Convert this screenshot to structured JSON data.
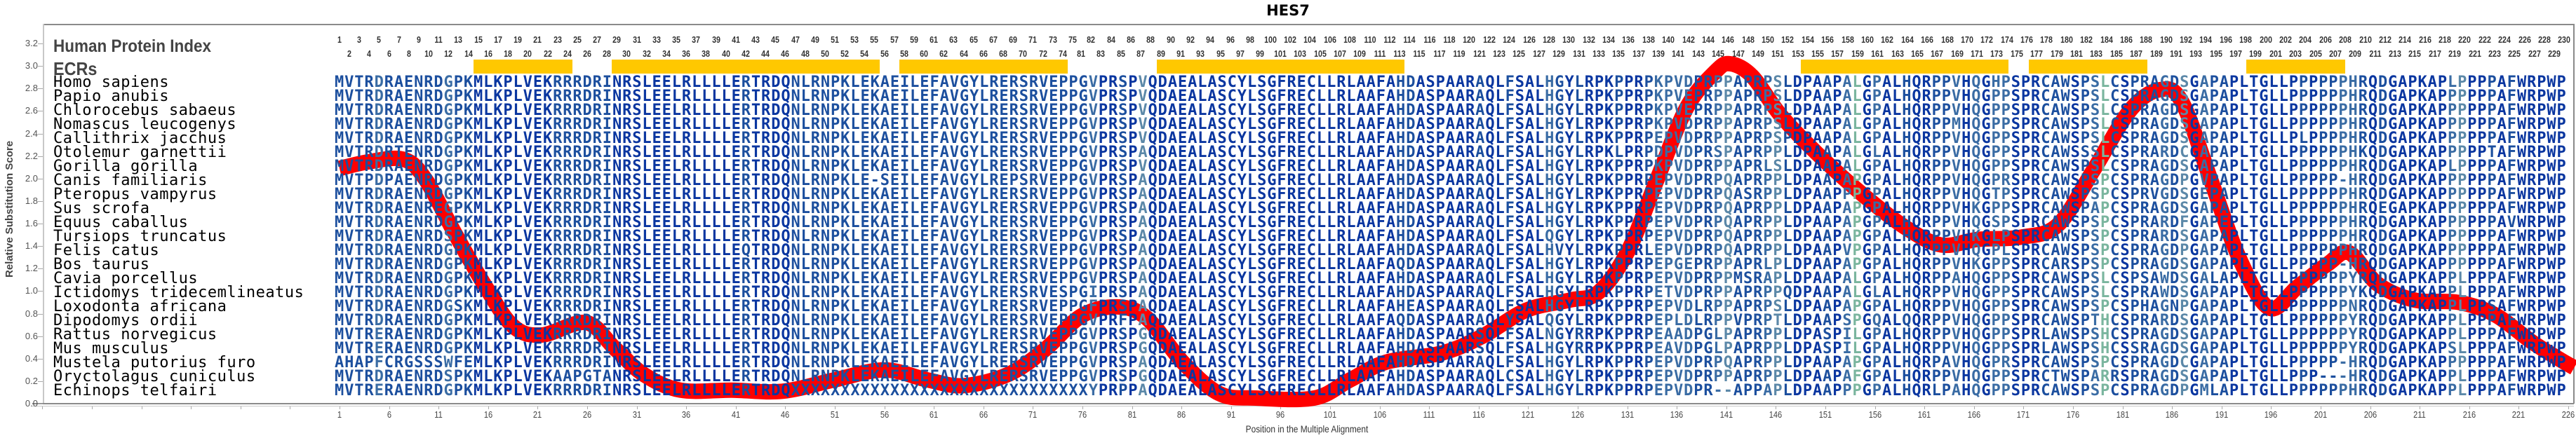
{
  "title": "HES7",
  "labels": {
    "human_protein_index": "Human Protein Index",
    "ecrs": "ECRs"
  },
  "chart_data": {
    "type": "line",
    "title": "HES7",
    "xlabel": "Position in the Multiple Alignment",
    "ylabel": "Relative Substitution Score",
    "xlim": [
      1,
      226
    ],
    "ylim": [
      0,
      3.2
    ],
    "grid": false,
    "x_ticks": [
      1,
      6,
      11,
      16,
      21,
      26,
      31,
      36,
      41,
      46,
      51,
      56,
      61,
      66,
      71,
      76,
      81,
      86,
      91,
      96,
      101,
      106,
      111,
      116,
      121,
      126,
      131,
      136,
      141,
      146,
      151,
      156,
      161,
      166,
      171,
      176,
      181,
      186,
      191,
      196,
      201,
      206,
      211,
      216,
      221,
      226
    ],
    "y_ticks": [
      "0.0",
      "0.2",
      "0.4",
      "0.6",
      "0.8",
      "1.0",
      "1.2",
      "1.4",
      "1.6",
      "1.8",
      "2.0",
      "2.2",
      "2.4",
      "2.6",
      "2.8",
      "3.0",
      "3.2"
    ],
    "series": [
      {
        "color": "#ff0000",
        "x": [
          1,
          4,
          7.5,
          9.7,
          12.6,
          15.6,
          18.5,
          21.4,
          25.9,
          28.8,
          31.7,
          35.4,
          40.6,
          45.7,
          50.9,
          56,
          60.4,
          64,
          68.5,
          72.2,
          75.9,
          79.5,
          82.5,
          86.1,
          89.8,
          93.5,
          99.4,
          103,
          106.7,
          112.3,
          116.4,
          120.8,
          125.2,
          128.1,
          131.1,
          134,
          137,
          139.9,
          141.4,
          143.6,
          146.5,
          150.2,
          154.6,
          159,
          162.7,
          166.4,
          170.8,
          174.5,
          178.1,
          181.8,
          184.8,
          187,
          189.9,
          192.8,
          195.8,
          198.7,
          201.7,
          203.9,
          206.8,
          210.5,
          214.9,
          218.6,
          222.3,
          225.2,
          226.6
        ],
        "y": [
          2.09,
          2.15,
          2.17,
          1.99,
          1.52,
          1.06,
          0.69,
          0.61,
          0.72,
          0.49,
          0.26,
          0.12,
          0.12,
          0.11,
          0.21,
          0.3,
          0.21,
          0.16,
          0.26,
          0.48,
          0.78,
          0.86,
          0.76,
          0.37,
          0.09,
          0.05,
          0.05,
          0.21,
          0.37,
          0.45,
          0.6,
          0.83,
          0.92,
          0.99,
          1.36,
          1.99,
          2.63,
          2.95,
          3.02,
          2.91,
          2.56,
          2.22,
          1.87,
          1.57,
          1.41,
          1.46,
          1.48,
          1.59,
          2.08,
          2.61,
          2.79,
          2.68,
          1.99,
          1.29,
          0.85,
          1.04,
          1.24,
          1.34,
          1.06,
          0.92,
          0.9,
          0.79,
          0.55,
          0.39,
          0.32
        ]
      }
    ],
    "ecrs": [
      [
        15,
        24
      ],
      [
        29,
        55
      ],
      [
        58,
        74
      ],
      [
        84,
        108
      ],
      [
        149,
        169
      ],
      [
        172,
        183
      ],
      [
        194,
        203
      ]
    ],
    "ecr_color": "#ffc800",
    "human_index": {
      "top_ranges": [
        [
          1,
          75
        ],
        [
          82,
          230
        ]
      ],
      "bottom_ranges": [
        [
          2,
          74
        ],
        [
          81,
          229
        ]
      ]
    },
    "residue_colors": {
      "conserved": "#0a36a0",
      "high": "#1c4f9e",
      "medium": "#3a6ca4",
      "low": "#5b88a8",
      "variable": "#7ab59e"
    },
    "alignment": [
      {
        "species": "Homo sapiens",
        "sequence": "MVTRDRAENRDGPKMLKPLVEKRRRDRINRSLEELRLLLLERTRDQNLRNPKLEKAEILEFAVGYLRERSRVEPPGVPRSPVQDAEALASCYLSGFRECLLRLAAFAHDASPAARAQLFSALHGYLRPKPPRPKPVDPRPPAPRPSLDPAAPALGPALHQRPPVHQGHPSPRCAWSPSLCSPRAGDSGAPAPLTGLLPPPPPPHRQDGAPKAPLPPPPAFWRPWP"
      },
      {
        "species": "Papio anubis",
        "sequence": "MVTRDRAENRDGPKMLKPLVEKRRRDRINRSLEELRLLLLERTRDQNLRNPKLEKAEILEFAVGYLRERSRVEPPGVPRSPVQDAEALASCYLSGFRECLLRLAAFAHDASPAARAQLFSALHGYLRPKPPRPKPVEPRPPAPRPSLDPAAPALGPALHQRPPVHQGPPSPRCAWSPSLCSPRAGDSGAPAPLTGLLPPPPPPHRQDGAPKAPPPPPPAFWRPWP"
      },
      {
        "species": "Chlorocebus sabaeus",
        "sequence": "MVTRDRAENRDGPKMLKPLVEKRRRDRINRSLEELRLLLLERTRDQNLRNPKLEKAEILEFAVGYLRERSRVEPPGVPRSPVQDAEALASCYLSGFRECLLRLAAFAHDASPAARAQLFSALHGYLRPKPPRPKPVEPRPPAPRPSLDPAAPALGPALHQRPPVHQGPPSPRCAWSPSLCSPRAGDSGAPAPLTGLLPPPPPPHRQDGAPKAPPPPPPAFWRPWP"
      },
      {
        "species": "Nomascus leucogenys",
        "sequence": "MVTRDRAENRDGPKMLKPLVEKRRRDRINRSLEELRLLLLERTRDQNLRNPKLEKAEILEFAVGYLRERSRVEPPGVPRSPVQDAEALASCYLSGFRECLLRLAAFAHDASPAARAQLFSALHGYLRPKPPRPKPVDPRPPAPRPSLDPAAPALGPALHQRPPMHQGPPSPRCAWSPSLCSPRAGDSGAPAPLTGLLPPPPPPHRQDGAPKAPPPPPPAFWRPWP"
      },
      {
        "species": "Callithrix jacchus",
        "sequence": "MVTRDRAENRDGPKMLKPLVEKRRRDRINRSLEELRLLLLERTRDQNLRNPKLEKAEILEFAVGYLRERSRVEPPGVPRSPVQDAEALASCYLSGFRECLLRLAAFAHDASPAARAQLFSALHGYLRPKPPRPEPVDPRPPAPRPSPDPAAPALGPALHQRPPVHQGPPSPRCAWSPSLCSPRAGDSGAPAPLTGLLPLPPPPHRQDGAPKAPPPPPPAFWRPWP"
      },
      {
        "species": "Otolemur garnettii",
        "sequence": "MVTRDRTENRDGPKMLKPLVEKRRRDRINRSLEELRLLLLERTRDQNLRNPKLEKAEILEFAVGYLRERSRVEPPGVPRSPAQDAEALASCYLSGFRECLLRLAAFAHDASPAARAQLFSALHGYLRPKLPRPDPVDPRSPAPRPPLDPAAPALGLALHQRPPVHQGPPSPRCAWSSSLCSPRARDCGAPAPLTGLLPPPPPPHKQDGAPKAPPPPPTAFWRPWP"
      },
      {
        "species": "Gorilla gorilla",
        "sequence": "MVTRDRAENRDGPKMLKPLVEKRRRDRINRSLEELRLLLLERTRDQNLRNPKLEKAEILEFAVGYLRERSRVEPPGVPRSPVQDAEALASCYLSGFRECLLRLAAFAHDASPAARAQLFSALHGYLRPKPPRPKPVDPRPPAPRLSLDPAAPALGPALHQRPPVHQGPPSPRCAWSPSLCSPRAGDSGAPAPLTGLLPPPPPPHRQDGAPKAPLPPPPAFWRPWP"
      },
      {
        "species": "Canis familiaris",
        "sequence": "MVTPDPAENRDGPKMLKPLVEKRRRDRINRSLEELRLLLLERTRDQNLRNPKLE-SEILEFAVGYLREPSRVEPPGVPRSPAQDAEALASCYLSGFRECLLRLAAFAHDASPAARAQLFSALHGYLRPKPPRPEPVDPRPQAPRPPLDPAAPAPGPALHQRPPVHQGPRSPRCAWSPSPCSPRAGDPGVPAPLTGLLPPPPP-HRQDGAPKAPPPPPPAFWRPWP"
      },
      {
        "species": "Pteropus vampyrus",
        "sequence": "MVTRDRAENRDGPKMLKPLVEKRRRDRINRSLEELRLLLLERTRDQNLRNPKLEKAEILEFAVGYLRERSRVEPPGVPRSPAQDAEALASCYLSGFRECLLRLAAFAHDASPAARAQLFSALHGYLRPKPPRPEPVDPRPQASRPPLDPAAPPPGPALHQRPPVHQGTPSPRCAWSPSPCSPRVGDSGEPAPLTGLLPPPPPPHRQDGAPKAPPPPPPAFWRPWP"
      },
      {
        "species": "Sus scrofa",
        "sequence": "MVTRDRAENREGPKMLKPLVEKRRRDRINRSLEELRLLLLERTRDQNLRNPKLEKAEILEFAVGYLRERSRVEPPGVPRSPAQDAEALASCYLSGFRECLLRLAAFAHDASPAARAQLFSALHGYLRPKPPRPEPVDPRPQAPRPPLDPAAPAPGPALHQRPPVHKGPPSPRCAWSPAPCSPRAGDSGAPAPLTGLLPPPPPPHRQEGAPKAPPPPPPAFWRPWP"
      },
      {
        "species": "Equus caballus",
        "sequence": "MVTRDRAENRDGPKMLKPLVEKRRRDRINRSLEELRLLLLERTRDQNLRNPKLEKAEILEFAVGYLRERSRVEPPGVPRSPAQDAEALASCYLSGFRECLLRLAAFAHDASPAARAQLFSALHGYLRPKPPRPEPVDPRPQAPRPPLDPAAPAPGPALHQRPPVHQGSPSPRCAWSPSPCSPRARDFGAPEPLTGLLPPPPPPHRQDGAPKAPPPPPPAVWRPWP"
      },
      {
        "species": "Tursiops truncatus",
        "sequence": "MVTRDRAENRDSPKMLKPLVEKRRRDRINRSLEELRLLLLERTRDQNLRNPKLEKAEILEFAVGYLRERSRVEPPGVPRSPAQDAEALASCYLSGFRECLLRLAAFAHDASPAARAQLFSALQGYLRPKPPRPEPVDPRPQAPRPPLDPAAPAPGPALHQRPPVHKGLPSPRCAWSPSPCSPRARDSGAPAPLTGLLPPPPPPHRQDGAPKAPPPPPPAFWRPWP"
      },
      {
        "species": "Felis catus",
        "sequence": "MVTRDRAENRDGPKMLKPLVEKRRRDRINRSLEELRLLLLEQTRDQNLRNPKLEKAEILEFAVGYLRERSRVEPPGVPRSPAQDAEALASCYLSGFRECLLRLAAFAHDASPAARAQLFSALHVYLRPKPPRLEPVDPRPQAPRPPLDPAAPVPGPALHQRPPVHQGPLSPRCAWSPSPCSPRAGDPGAPAPLTGLLPPPPPPHRQDGAPKAPPPPPPAFWRPWP"
      },
      {
        "species": "Bos taurus",
        "sequence": "MVTRDRAENRDGPKMLKPLVEKRRRDRINRSLEELRLLLLERTRDQNLRNPKLEKAEILEFAVGYLRERSRVEPPGVPRSPAQDAEALASCYLSGFRECLLRLAAFAQDASPAARAQLFSALHGYLRPKPPRPEPGEPRPPAPRLPLDPAAPAPGPALHQRPPVHKGPPSPRCARSPSPCSPRAGDSGAPAPLTGLLPPPPP-HRQDGAPKAPPPPPPAFWRPWP"
      },
      {
        "species": "Cavia porcellus",
        "sequence": "MVTRDRAENRDGPKMLKPLVEKRRRDRINRSLEELRLLLLERTRDQNLRNPKLEKAEILEFAVGYLRERSRVEPPGVPRSPAQDAEALASCYLSGFRECLLRLAAFAHDASPAARAQLFSALHGYLRPKPPRPEPVDPRPPMSRAPLDPAAPALGPALHQRPPAHQGPPSPRCAWSPSLCSPSAWDSGALAPLTGLLPPPPPPYRQDGAPKAPPLPPPAFWRPWP"
      },
      {
        "species": "Ictidomys tridecemlineatus",
        "sequence": "MVTRDRAENRDGPKMLKPLVEKRRRDRINRSLEELRLLLLERTRDQNLRNPKLEKAEILEFAVGYLRERSRVESPGIPRSPAQDAEALASCYLSGFRECLLRLAAFAHDASPAARAQLFSALHGYLRPKPPRPETVDPRPPAPRPPQDPAAPALGLALHQRPPVHQGPPSPRCAWSPSLCSPRAWDSGAPAPLTGLLPPPPPPYKQDGAPKAPPLPPPAFWRPWP"
      },
      {
        "species": "Loxodonta africana",
        "sequence": "MVTRDRAENRDGSKMLKPLVEKRRRDRINRSLEELRLLLLERTRDQNLRNPKLEKAEILEFAVGYLRERSRVEPPGFPRSPAQDAEALASCYLSGFRECLLRLAAFAHEASPAARAQLFSALHGYLRPKPPRPEPVDLRPPAPRPSLDPAAPAPGPALHQRPPVHQGPPSPRCAWSPSPCSPHAGNPGAPAPLTGLLPPPPPPNRQDGAPKAPPLPPSAFWRPWP"
      },
      {
        "species": "Dipodomys ordii",
        "sequence": "MVTRDRAENRDGPKMLKPLVEKRRRDRINRSLEELRLLLLERTRDQNLRNPKLEKAEILEFAVGYLRERSRVEPPGVPRFPAQDAEALASCYLSGFRECLLRLAAFAQDASPAARAQLYSALQGYLRPKPPRPEPLDLRPPVPRPTLDPAAPSPGQALQQRPPVHQGPPSPRCAWSPTHCSPRARDSGAPAPLTGLLPPPPPPYRQDGAPKAPPLPPPAFWRPWP"
      },
      {
        "species": "Rattus norvegicus",
        "sequence": "MVTRERAENRDGPKMLKPLVEKRRRDRINRSLEELRLLLLERTRDQNLRNPKLEKAEILEFAVGYLRERSRVEPPGVPRSPGQDAEALASCYLSGFRECLLRLAAFAHDASPAARSQLFSALNGYRRPKPPRPEAADPGLPAPRPPLDPASPILGPALHQRPPVHQGPPSPRLAWSPSHCSPRAGDSGAPAPLTGLLPPPPPPYRQDGAPKAPPLPPPAFWRPWP"
      },
      {
        "species": "Mus musculus",
        "sequence": "MVTRERAENRDGPKMLKPLVEKRRRDRINRSLEELRLLLLERTRDQNLRNPKLEKAEILEFAVGYLRERSRVEPPGVPRSPGQDAEALASCYLSGFRECLLRLAAFAHDASPAARSQLFSALHGYRRPKPPRPEAVDPGLPAPRPPLDPASPILGPALHQRPPVHQGPPSPRLAWSPSHCSSRAGDSGAPAPLTGLLPPPPPPYRQDGAPKAPSLPPPAFWRPWP"
      },
      {
        "species": "Mustela putorius furo",
        "sequence": "AHAPFCRGSSSWFEMLKPLVEKRRRDRINRSLEELRLLLLERTRDQNLRNPKLEKAEILEFAVGYLRERSRVEPPGVPRSPAQDAEALASCYLSGFRECLLRLAAFAHDASPAARAQLFSALHGYLRPKPPRPEPVDPRPQAPRPPLDPAAPAPGPALHQRPAVHQGPRSPRCAWSPSPCSPRAGDCGAPAPLTGLLPPPPP-HRQDGAPKAPPPPPPAFWRPWP"
      },
      {
        "species": "Oryctolagus cuniculus",
        "sequence": "MVTRDRAENRDSPKMLKPLVEKAAPGTANRSLEELRLLLLERTRDQNLRNPKLEKAEILEFAVGYLRERSRVEPPGVPRSPGQDAEALASCYLSGFRECLLRLAAFAHDASPAARAQLCSALHGYLRPKPPRPEPVDPRPPAPRPPLDPAAPAFGPALHQRPPVHQGPPSPRCTWSPARRSPRAGDSGAPAPLTGLLPPP---HRQDGAPKAPPLPPPAFWRPWP"
      },
      {
        "species": "Echinops telfairi",
        "sequence": "MVTRERAENRDGPKMLKPLVEKRRRDRINRSLEELRLLLLERTRDQXXXXXXXXXXXXXXXXXXXXXXXXXXXXXXYPRPPAQDAEALASCYLSGFRECLLRLAAFAHDASPAARAQLFSALHGYLRPKPPRPEPVDPR--APPAPLDPAAPPPGPALHQRLPAHQGPPSPRCAWSPSPCSPRAGDPGMLAPLTGLLPPPPPPHRQDGAPKAPPLPPPAFWRPWP"
      }
    ]
  }
}
